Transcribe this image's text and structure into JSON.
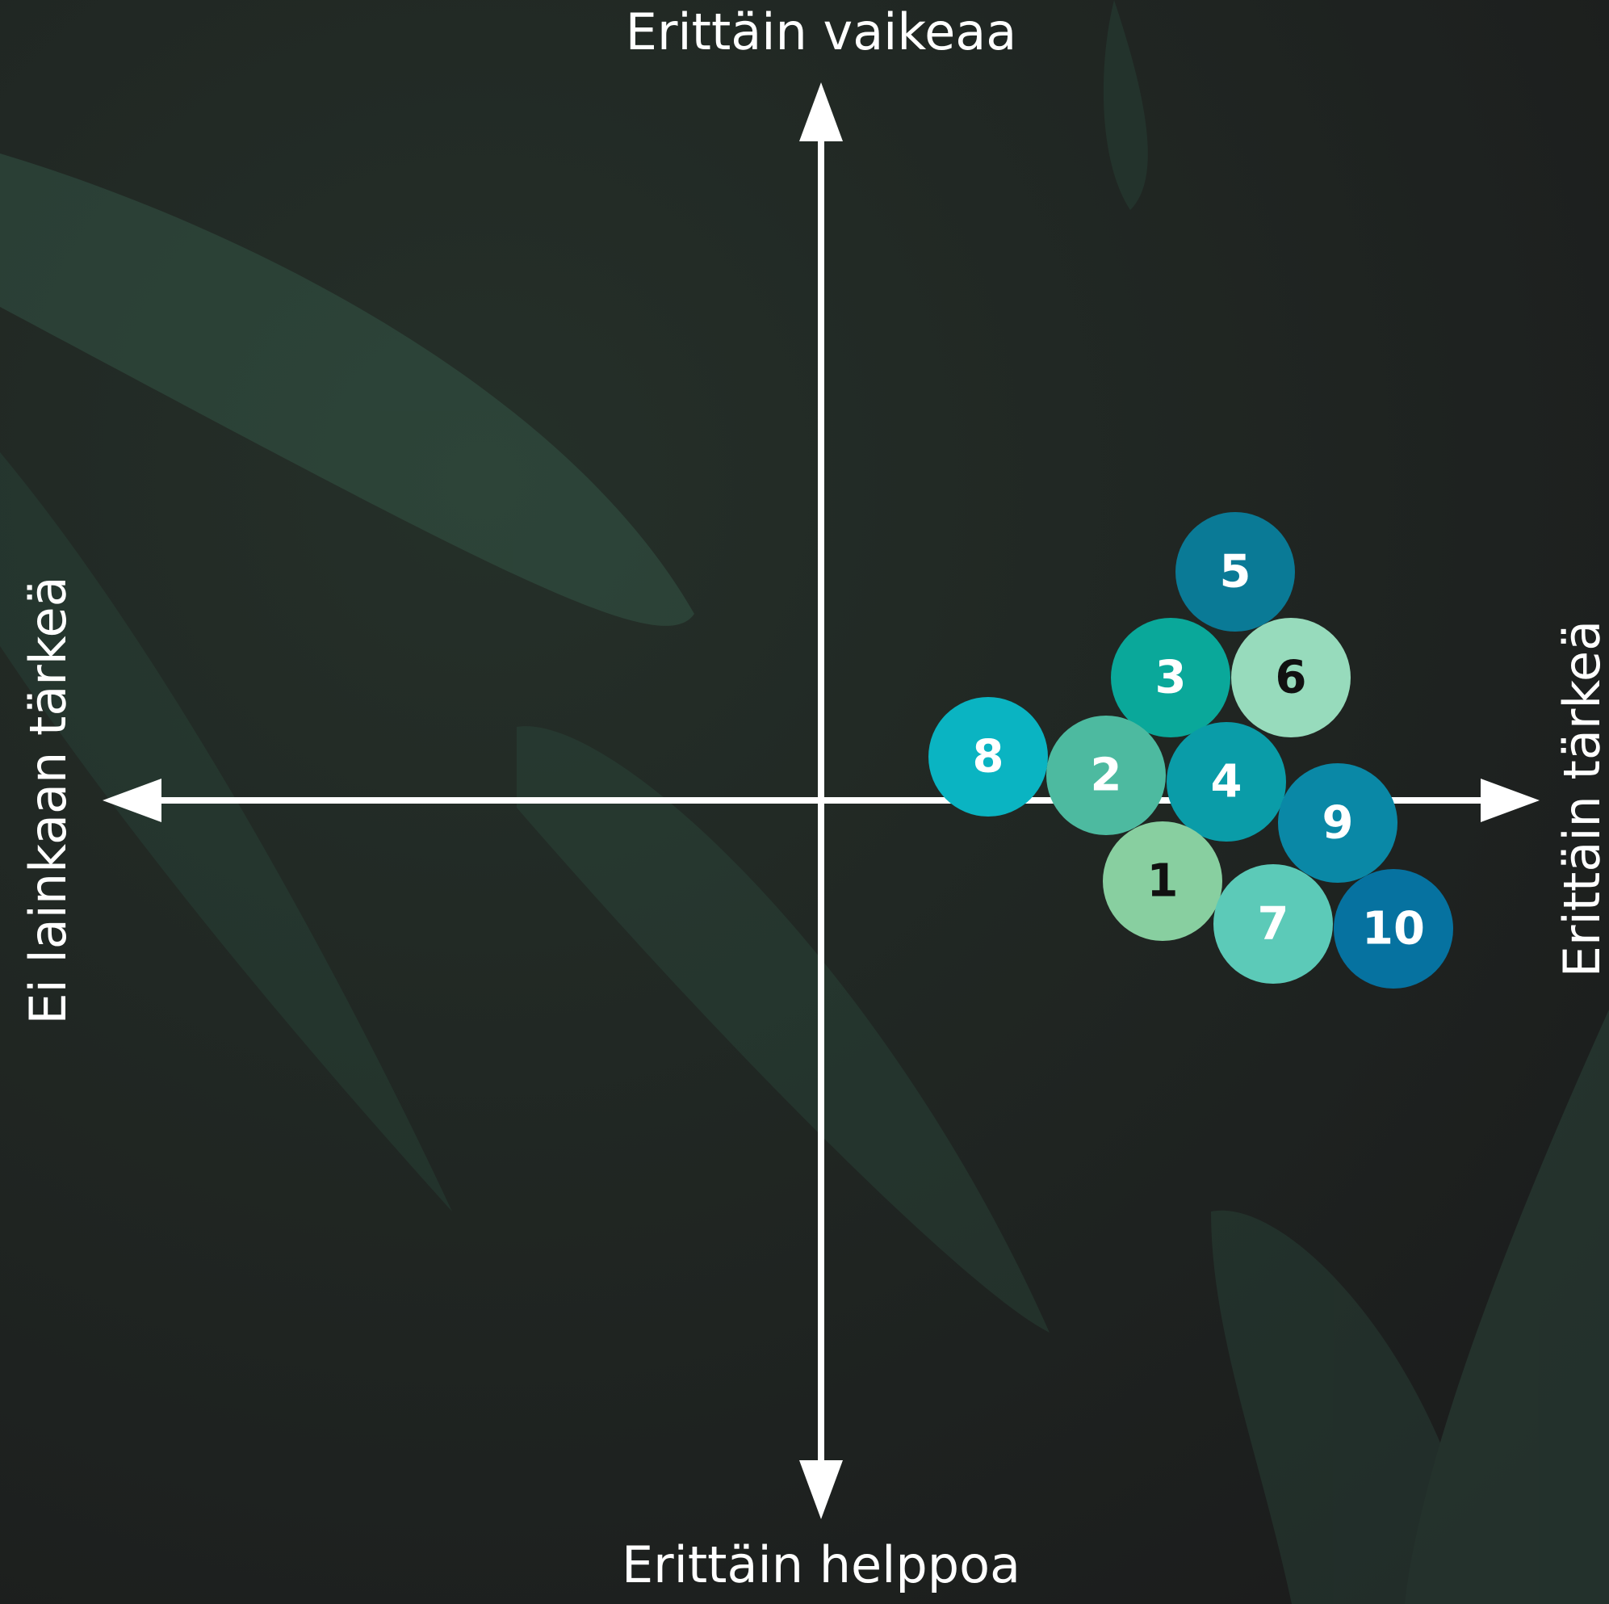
{
  "axes": {
    "top": "Erittäin vaikeaa",
    "bottom": "Erittäin helppoa",
    "left": "Ei lainkaan tärkeä",
    "right": "Erittäin tärkeä"
  },
  "nodes": [
    {
      "label": "1",
      "color": "#88cfa0",
      "text_color": "#111111"
    },
    {
      "label": "2",
      "color": "#4dbaa0",
      "text_color": "#ffffff"
    },
    {
      "label": "3",
      "color": "#0aa89a",
      "text_color": "#ffffff"
    },
    {
      "label": "4",
      "color": "#0a9ca8",
      "text_color": "#ffffff"
    },
    {
      "label": "5",
      "color": "#0a7a96",
      "text_color": "#ffffff"
    },
    {
      "label": "6",
      "color": "#97dbbc",
      "text_color": "#111111"
    },
    {
      "label": "7",
      "color": "#5ccab8",
      "text_color": "#ffffff"
    },
    {
      "label": "8",
      "color": "#0ab4c2",
      "text_color": "#ffffff"
    },
    {
      "label": "9",
      "color": "#0a88a6",
      "text_color": "#ffffff"
    },
    {
      "label": "10",
      "color": "#0672a0",
      "text_color": "#ffffff"
    }
  ]
}
